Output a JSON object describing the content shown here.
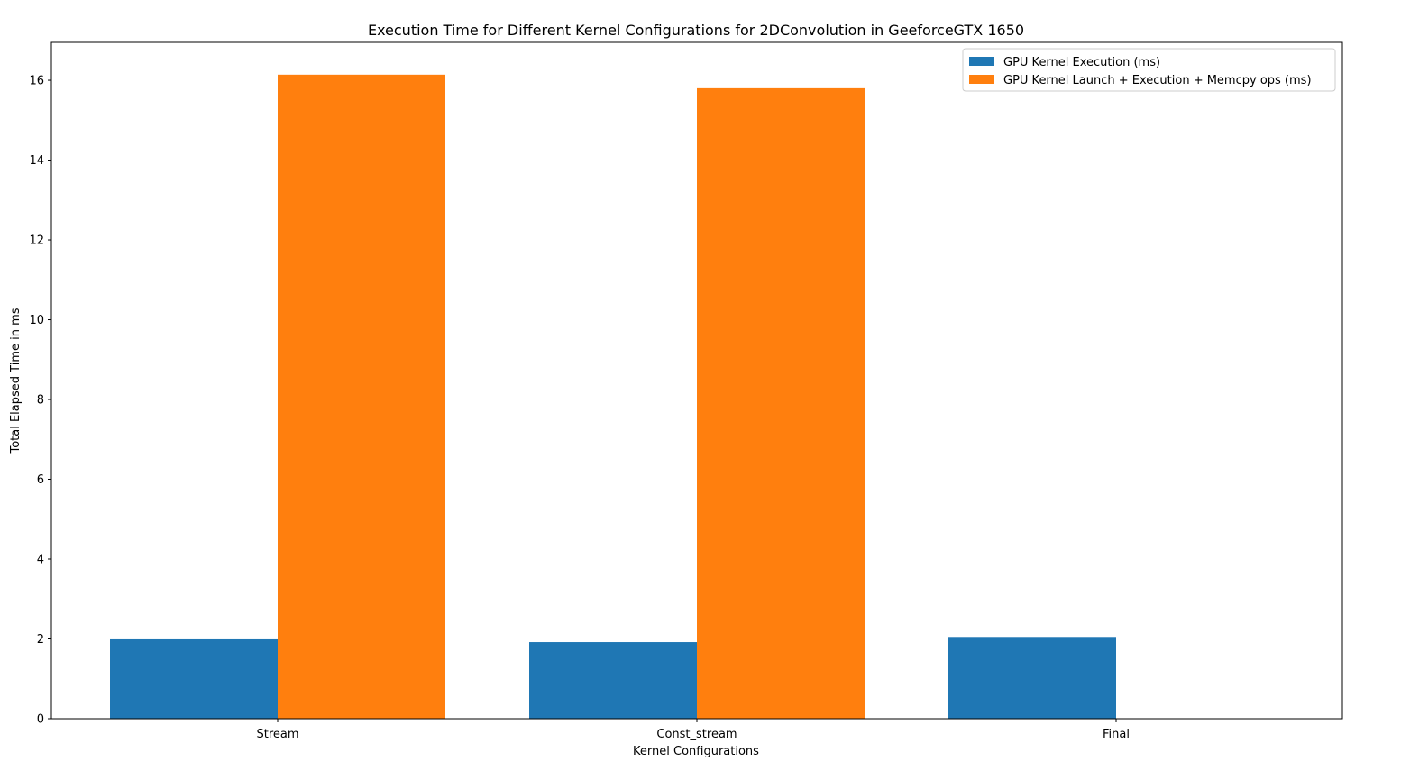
{
  "chart_data": {
    "type": "bar",
    "title": "Execution Time for Different Kernel Configurations for 2DConvolution in GeeforceGTX 1650",
    "xlabel": "Kernel Configurations",
    "ylabel": "Total Elapsed Time in ms",
    "categories": [
      "Stream",
      "Const_stream",
      "Final"
    ],
    "series": [
      {
        "name": "GPU Kernel Execution (ms)",
        "color": "#1f77b4",
        "values": [
          1.99,
          1.92,
          2.05
        ]
      },
      {
        "name": "GPU Kernel Launch + Execution + Memcpy ops (ms)",
        "color": "#ff7f0e",
        "values": [
          16.14,
          15.8,
          0
        ]
      }
    ],
    "ylim": [
      0,
      16.95
    ],
    "yticks": [
      0,
      2,
      4,
      6,
      8,
      10,
      12,
      14,
      16
    ],
    "grid": false,
    "legend_position": "top-right"
  }
}
